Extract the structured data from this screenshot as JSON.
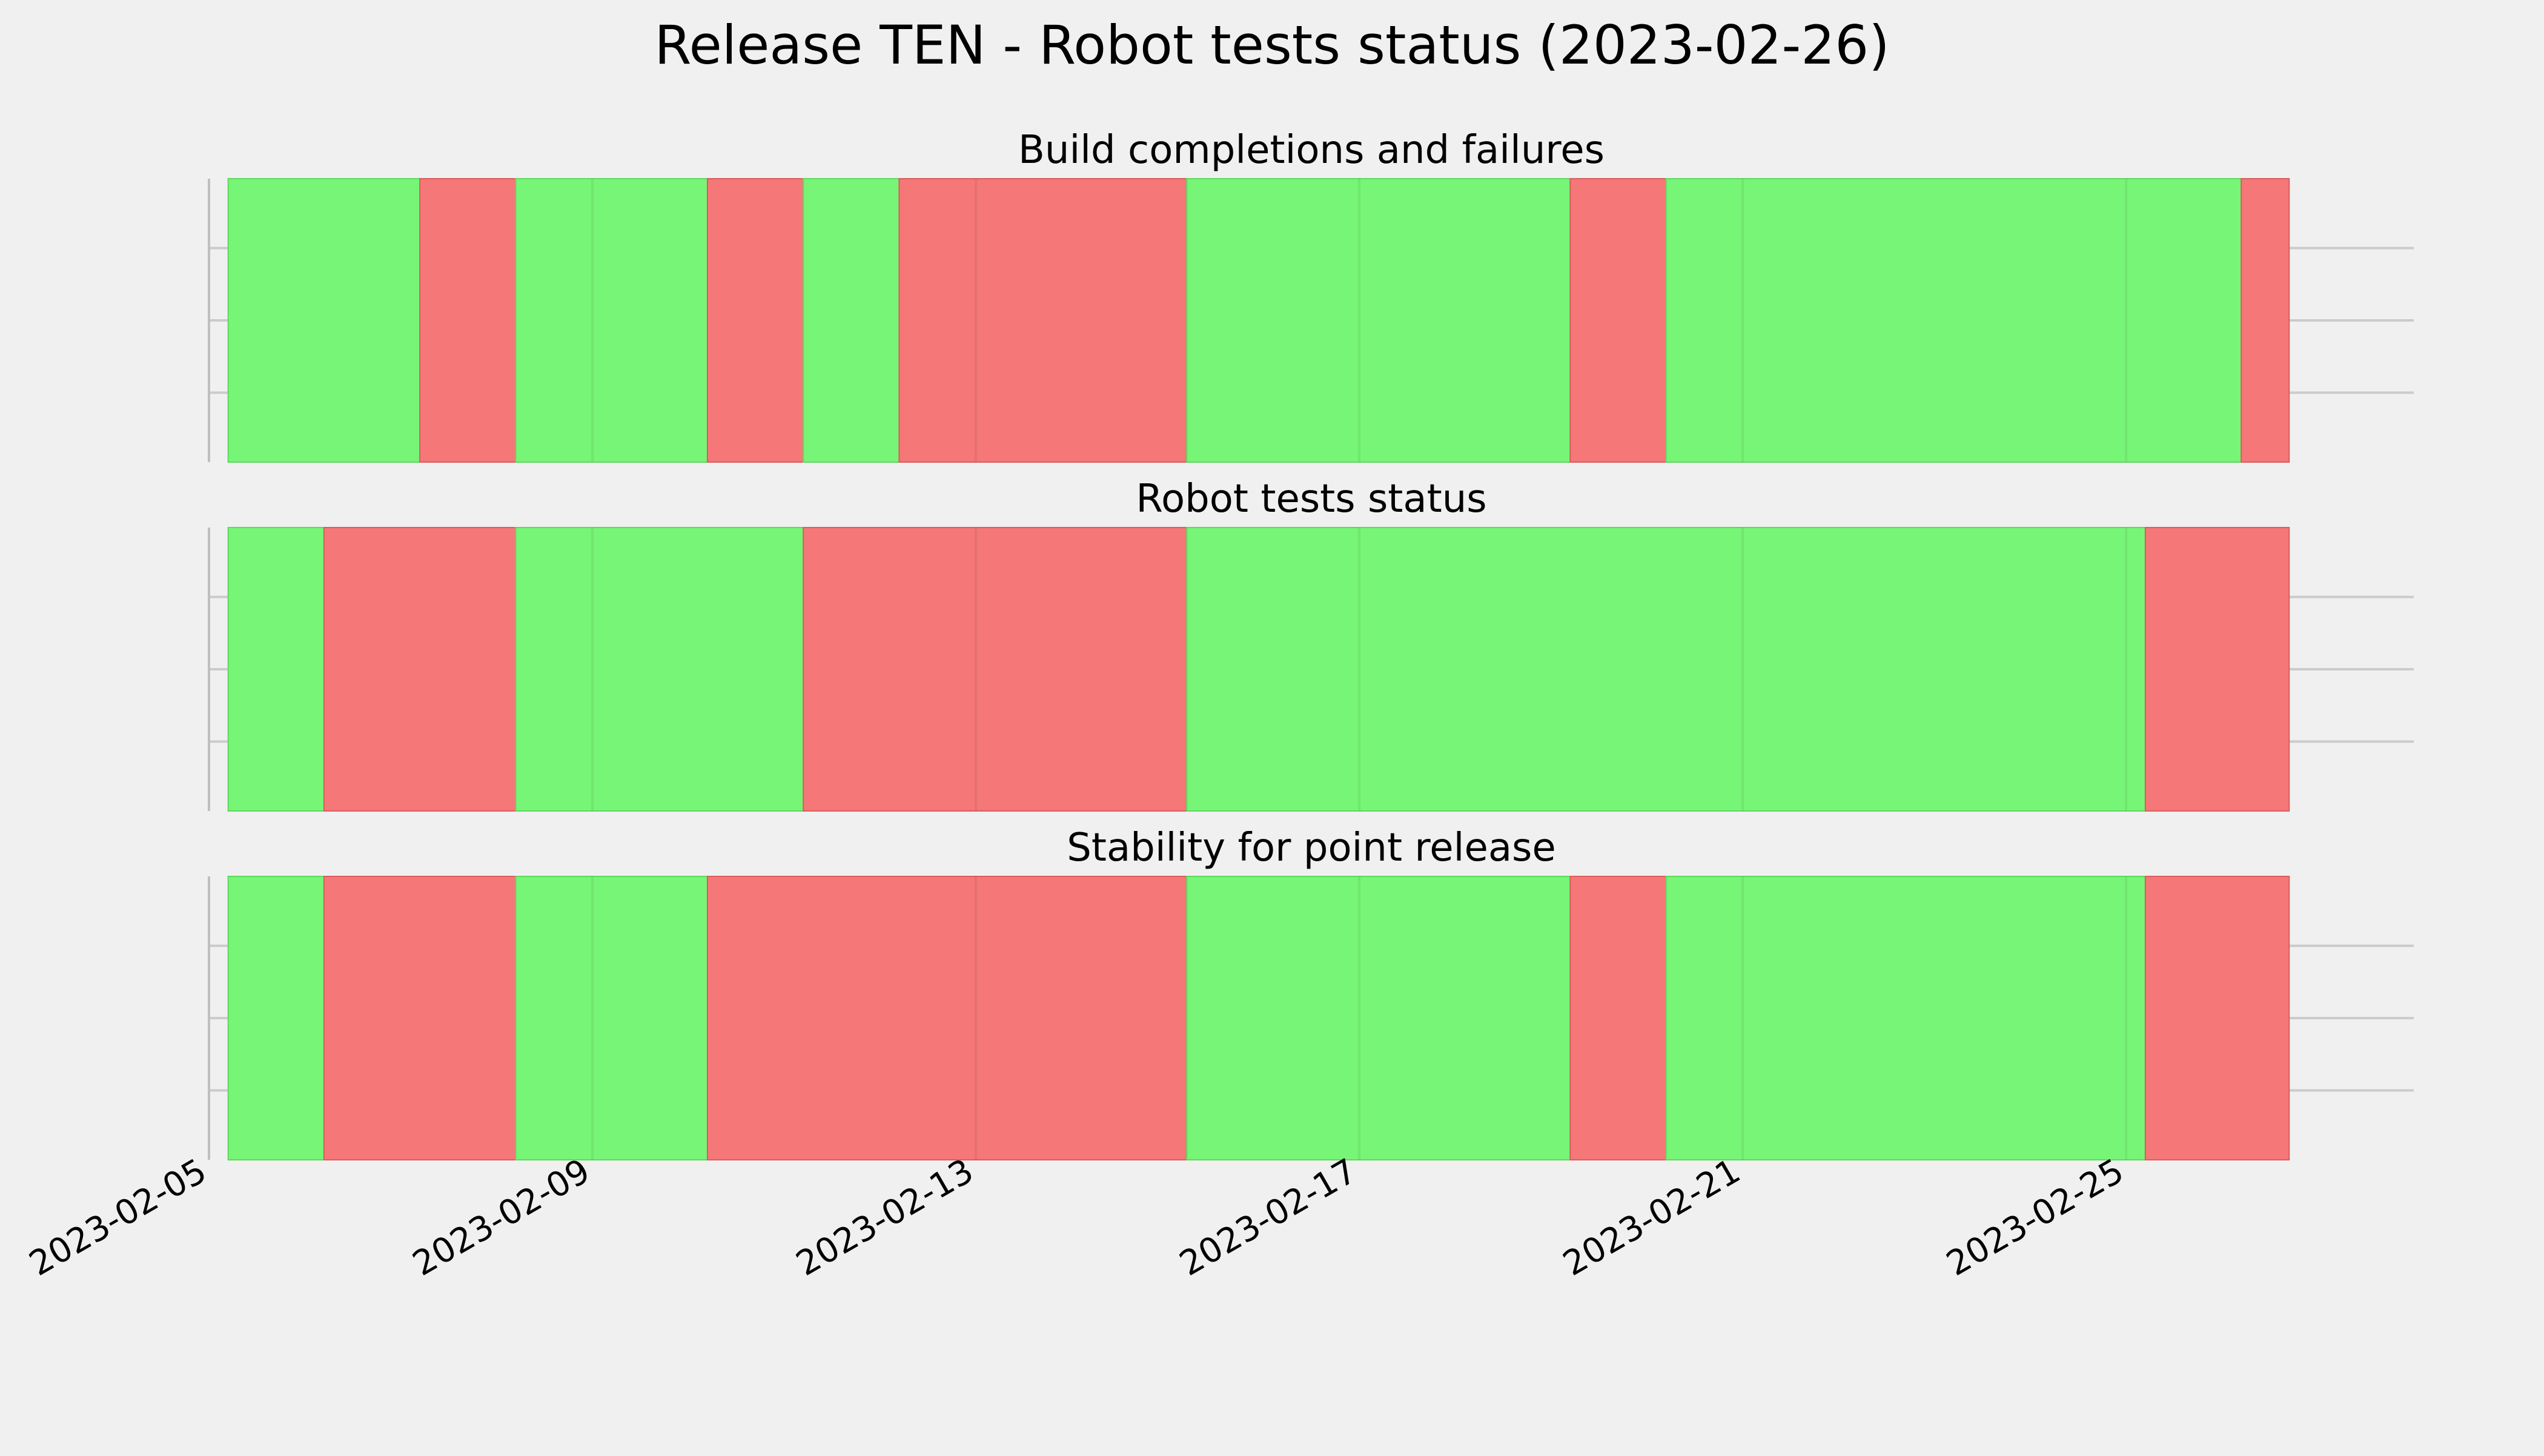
{
  "chart_data": {
    "type": "timeline-status",
    "title": "Release TEN - Robot tests status (2023-02-26)",
    "x_type": "date",
    "xlim": [
      "2023-02-05",
      "2023-02-28"
    ],
    "x_ticks": [
      "2023-02-05",
      "2023-02-09",
      "2023-02-13",
      "2023-02-17",
      "2023-02-21",
      "2023-02-25"
    ],
    "grid": true,
    "colors": {
      "pass": "#77f577",
      "fail": "#f57777",
      "background": "#f0f0f0",
      "grid": "#cbcbcb"
    },
    "panels": [
      {
        "title": "Build completions and failures",
        "segments": [
          {
            "start": "2023-02-05T04:48",
            "end": "2023-02-07T04:48",
            "status": "pass"
          },
          {
            "start": "2023-02-07T04:48",
            "end": "2023-02-08T04:48",
            "status": "fail"
          },
          {
            "start": "2023-02-08T04:48",
            "end": "2023-02-10T04:48",
            "status": "pass"
          },
          {
            "start": "2023-02-10T04:48",
            "end": "2023-02-11T04:48",
            "status": "fail"
          },
          {
            "start": "2023-02-11T04:48",
            "end": "2023-02-12T04:48",
            "status": "pass"
          },
          {
            "start": "2023-02-12T04:48",
            "end": "2023-02-15T04:48",
            "status": "fail"
          },
          {
            "start": "2023-02-15T04:48",
            "end": "2023-02-19T04:48",
            "status": "pass"
          },
          {
            "start": "2023-02-19T04:48",
            "end": "2023-02-20T04:48",
            "status": "fail"
          },
          {
            "start": "2023-02-20T04:48",
            "end": "2023-02-26T04:48",
            "status": "pass"
          },
          {
            "start": "2023-02-26T04:48",
            "end": "2023-02-26T16:48",
            "status": "fail"
          }
        ]
      },
      {
        "title": "Robot tests status",
        "segments": [
          {
            "start": "2023-02-05T04:48",
            "end": "2023-02-06T04:48",
            "status": "pass"
          },
          {
            "start": "2023-02-06T04:48",
            "end": "2023-02-08T04:48",
            "status": "fail"
          },
          {
            "start": "2023-02-08T04:48",
            "end": "2023-02-11T04:48",
            "status": "pass"
          },
          {
            "start": "2023-02-11T04:48",
            "end": "2023-02-15T04:48",
            "status": "fail"
          },
          {
            "start": "2023-02-15T04:48",
            "end": "2023-02-25T04:48",
            "status": "pass"
          },
          {
            "start": "2023-02-25T04:48",
            "end": "2023-02-26T16:48",
            "status": "fail"
          }
        ]
      },
      {
        "title": "Stability for point release",
        "segments": [
          {
            "start": "2023-02-05T04:48",
            "end": "2023-02-06T04:48",
            "status": "pass"
          },
          {
            "start": "2023-02-06T04:48",
            "end": "2023-02-08T04:48",
            "status": "fail"
          },
          {
            "start": "2023-02-08T04:48",
            "end": "2023-02-10T04:48",
            "status": "pass"
          },
          {
            "start": "2023-02-10T04:48",
            "end": "2023-02-15T04:48",
            "status": "fail"
          },
          {
            "start": "2023-02-15T04:48",
            "end": "2023-02-19T04:48",
            "status": "pass"
          },
          {
            "start": "2023-02-19T04:48",
            "end": "2023-02-20T04:48",
            "status": "fail"
          },
          {
            "start": "2023-02-20T04:48",
            "end": "2023-02-25T04:48",
            "status": "pass"
          },
          {
            "start": "2023-02-25T04:48",
            "end": "2023-02-26T16:48",
            "status": "fail"
          }
        ]
      }
    ]
  }
}
